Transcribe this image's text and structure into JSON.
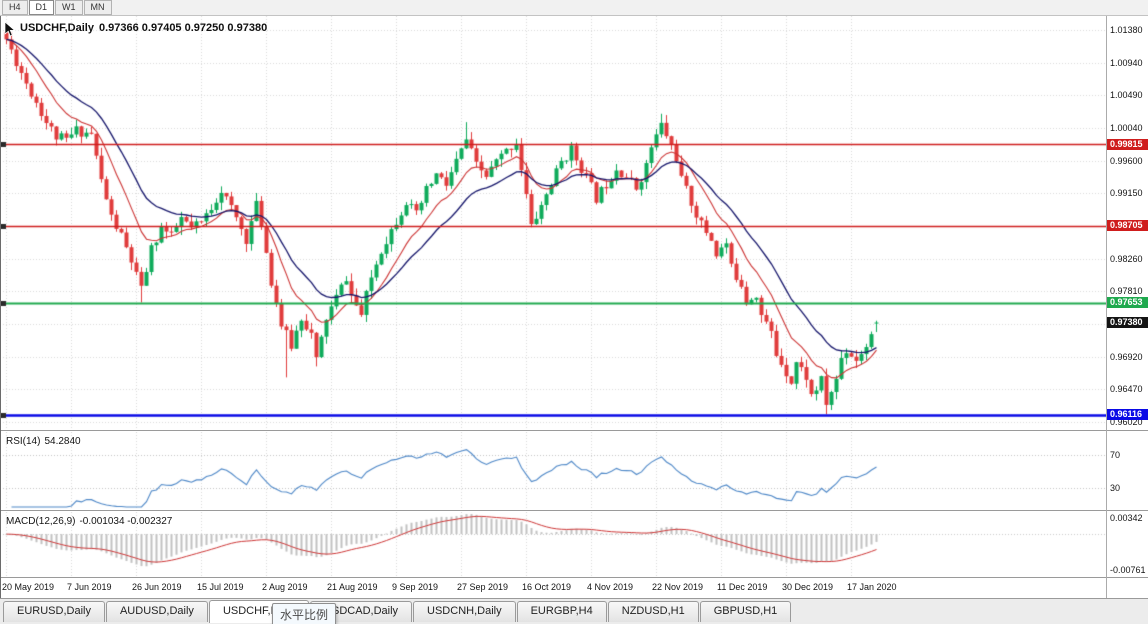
{
  "toolbar": {
    "timeframes": [
      {
        "label": "H4",
        "active": false
      },
      {
        "label": "D1",
        "active": true
      },
      {
        "label": "W1",
        "active": false
      },
      {
        "label": "MN",
        "active": false
      }
    ]
  },
  "chart": {
    "symbol_title": "USDCHF,Daily",
    "ohlc_text": "0.97366 0.97405 0.97250 0.97380",
    "price_axis_labels": [
      "1.01380",
      "1.00940",
      "1.00490",
      "1.00040",
      "0.99600",
      "0.99150",
      "0.98700",
      "0.98260",
      "0.97810",
      "0.97360",
      "0.96920",
      "0.96470",
      "0.96020"
    ],
    "levels": [
      {
        "label": "0.99815",
        "value": 0.99815,
        "color": "#cf1d1d",
        "width": 1.4
      },
      {
        "label": "0.98705",
        "value": 0.98705,
        "color": "#cf1d1d",
        "width": 1.4
      },
      {
        "label": "0.97653",
        "value": 0.97653,
        "color": "#1fa94e",
        "width": 2
      },
      {
        "label": "0.96116",
        "value": 0.96116,
        "color": "#0a0ae6",
        "width": 2.4
      }
    ],
    "current_price": {
      "label": "0.97380",
      "value": 0.9738,
      "box_color": "#141414"
    },
    "date_labels": [
      "20 May 2019",
      "7 Jun 2019",
      "26 Jun 2019",
      "15 Jul 2019",
      "2 Aug 2019",
      "21 Aug 2019",
      "9 Sep 2019",
      "27 Sep 2019",
      "16 Oct 2019",
      "4 Nov 2019",
      "22 Nov 2019",
      "11 Dec 2019",
      "30 Dec 2019",
      "17 Jan 2020"
    ]
  },
  "rsi": {
    "name": "RSI(14)",
    "value_text": "54.2840",
    "value": 54.284,
    "levels": [
      70,
      30
    ],
    "axis_labels": [
      "70",
      "30"
    ],
    "line_color": "#4d87c7",
    "level_line_color": "#c0c0c0"
  },
  "macd": {
    "name": "MACD(12,26,9)",
    "values_text": "-0.001034 -0.002327",
    "main_value": -0.001034,
    "signal_value": -0.002327,
    "axis_labels": [
      "0.00342",
      "-0.00761"
    ],
    "axis_values": [
      0.00342,
      -0.00761
    ],
    "bar_color": "#c2c2c2",
    "signal_color": "#cc3333",
    "zero_line_color": "#c8c8c8"
  },
  "tabs": [
    {
      "label": "EURUSD,Daily",
      "active": false
    },
    {
      "label": "AUDUSD,Daily",
      "active": false
    },
    {
      "label": "USDCHF,Daily",
      "active": true
    },
    {
      "label": "USDCAD,Daily",
      "active": false
    },
    {
      "label": "USDCNH,Daily",
      "active": false
    },
    {
      "label": "EURGBP,H4",
      "active": false
    },
    {
      "label": "NZDUSD,H1",
      "active": false
    },
    {
      "label": "GBPUSD,H1",
      "active": false
    }
  ],
  "tooltip": {
    "text": "水平比例"
  },
  "chart_data": {
    "type": "candlestick",
    "symbol": "USDCHF",
    "timeframe": "Daily",
    "current_bar": {
      "open": 0.97366,
      "high": 0.97405,
      "low": 0.9725,
      "close": 0.9738
    },
    "candle_count": 175,
    "seed": 11,
    "colors": {
      "up": "#0fab5b",
      "down": "#e03c3c",
      "ma_fast": "#cc3333",
      "ma_slow": "#16166b",
      "grid": "#d8d8d8"
    },
    "ma_periods": {
      "fast": 10,
      "slow": 20
    },
    "indicators": {
      "rsi_period": 14,
      "macd": [
        12,
        26,
        9
      ]
    },
    "price_path": [
      [
        0,
        1.0125
      ],
      [
        2,
        1.0095
      ],
      [
        3,
        1.008
      ],
      [
        5,
        1.0052
      ],
      [
        6,
        1.004
      ],
      [
        8,
        1.0012
      ],
      [
        10,
        0.9992
      ],
      [
        12,
        0.9987
      ],
      [
        14,
        1.0001
      ],
      [
        17,
        0.9996
      ],
      [
        19,
        0.9932
      ],
      [
        21,
        0.9882
      ],
      [
        23,
        0.9856
      ],
      [
        25,
        0.9822
      ],
      [
        27,
        0.9782
      ],
      [
        29,
        0.9838
      ],
      [
        31,
        0.9868
      ],
      [
        33,
        0.9855
      ],
      [
        35,
        0.988
      ],
      [
        37,
        0.9866
      ],
      [
        39,
        0.9874
      ],
      [
        41,
        0.9896
      ],
      [
        43,
        0.992
      ],
      [
        46,
        0.988
      ],
      [
        48,
        0.9852
      ],
      [
        50,
        0.9898
      ],
      [
        51,
        0.9874
      ],
      [
        53,
        0.9795
      ],
      [
        55,
        0.9735
      ],
      [
        57,
        0.9706
      ],
      [
        59,
        0.9746
      ],
      [
        61,
        0.9722
      ],
      [
        62,
        0.9686
      ],
      [
        64,
        0.9744
      ],
      [
        66,
        0.9772
      ],
      [
        68,
        0.98
      ],
      [
        69,
        0.9774
      ],
      [
        71,
        0.9748
      ],
      [
        73,
        0.98
      ],
      [
        75,
        0.9838
      ],
      [
        78,
        0.9878
      ],
      [
        80,
        0.9904
      ],
      [
        82,
        0.9884
      ],
      [
        84,
        0.9918
      ],
      [
        86,
        0.994
      ],
      [
        88,
        0.9926
      ],
      [
        90,
        0.9958
      ],
      [
        92,
        0.9988
      ],
      [
        94,
        0.9952
      ],
      [
        96,
        0.9938
      ],
      [
        98,
        0.9958
      ],
      [
        100,
        0.9972
      ],
      [
        102,
        0.9986
      ],
      [
        104,
        0.9912
      ],
      [
        105,
        0.9868
      ],
      [
        107,
        0.9898
      ],
      [
        109,
        0.9928
      ],
      [
        111,
        0.9958
      ],
      [
        113,
        0.9974
      ],
      [
        115,
        0.995
      ],
      [
        116,
        0.9938
      ],
      [
        118,
        0.9908
      ],
      [
        120,
        0.9928
      ],
      [
        122,
        0.995
      ],
      [
        124,
        0.9938
      ],
      [
        126,
        0.9922
      ],
      [
        128,
        0.9952
      ],
      [
        129,
        0.9978
      ],
      [
        131,
        1.0008
      ],
      [
        132,
        0.9994
      ],
      [
        134,
        0.9964
      ],
      [
        135,
        0.9934
      ],
      [
        137,
        0.9902
      ],
      [
        139,
        0.9872
      ],
      [
        141,
        0.9852
      ],
      [
        142,
        0.9832
      ],
      [
        144,
        0.9846
      ],
      [
        145,
        0.9812
      ],
      [
        147,
        0.9792
      ],
      [
        148,
        0.9768
      ],
      [
        150,
        0.9778
      ],
      [
        151,
        0.9748
      ],
      [
        153,
        0.9724
      ],
      [
        154,
        0.9694
      ],
      [
        155,
        0.9684
      ],
      [
        157,
        0.9658
      ],
      [
        158,
        0.9684
      ],
      [
        160,
        0.9664
      ],
      [
        161,
        0.9638
      ],
      [
        163,
        0.9658
      ],
      [
        164,
        0.9627
      ],
      [
        166,
        0.966
      ],
      [
        167,
        0.969
      ],
      [
        168,
        0.97
      ],
      [
        170,
        0.9688
      ],
      [
        171,
        0.9698
      ],
      [
        172,
        0.9706
      ],
      [
        173,
        0.9728
      ],
      [
        174,
        0.9737
      ]
    ],
    "pin_highs": [
      [
        0,
        1.0133
      ],
      [
        92,
        1.0012
      ],
      [
        131,
        1.00235
      ]
    ],
    "pin_lows": [
      [
        27,
        0.97655
      ],
      [
        56,
        0.9663
      ],
      [
        62,
        0.9678
      ],
      [
        164,
        0.96127
      ]
    ]
  }
}
